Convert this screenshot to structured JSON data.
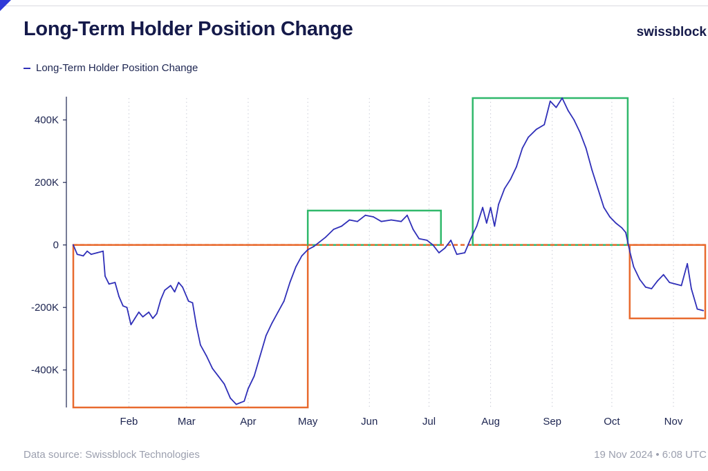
{
  "header": {
    "title": "Long-Term Holder Position Change",
    "brand": "swissblock"
  },
  "footer": {
    "source": "Data source: Swissblock Technologies",
    "timestamp": "19 Nov 2024 • 6:08 UTC"
  },
  "chart_data": {
    "type": "line",
    "title": "Long-Term Holder Position Change",
    "legend": {
      "placement": "top-left",
      "entries": [
        "Long-Term Holder Position Change"
      ]
    },
    "xlabel": "",
    "ylabel": "",
    "ylim": [
      -520000,
      470000
    ],
    "xlim": [
      "2024-01-04",
      "2024-11-17"
    ],
    "grid": {
      "x": true,
      "y": false
    },
    "x_ticks": [
      {
        "date": "2024-02-01",
        "label": "Feb"
      },
      {
        "date": "2024-03-01",
        "label": "Mar"
      },
      {
        "date": "2024-04-01",
        "label": "Apr"
      },
      {
        "date": "2024-05-01",
        "label": "May"
      },
      {
        "date": "2024-06-01",
        "label": "Jun"
      },
      {
        "date": "2024-07-01",
        "label": "Jul"
      },
      {
        "date": "2024-08-01",
        "label": "Aug"
      },
      {
        "date": "2024-09-01",
        "label": "Sep"
      },
      {
        "date": "2024-10-01",
        "label": "Oct"
      },
      {
        "date": "2024-11-01",
        "label": "Nov"
      }
    ],
    "y_ticks": [
      {
        "value": 400000,
        "label": "400K"
      },
      {
        "value": 200000,
        "label": "200K"
      },
      {
        "value": 0,
        "label": "0"
      },
      {
        "value": -200000,
        "label": "-200K"
      },
      {
        "value": -400000,
        "label": "-400K"
      }
    ],
    "series": [
      {
        "name": "Long-Term Holder Position Change",
        "color": "#2f2fb8",
        "points": [
          [
            "2024-01-04",
            0
          ],
          [
            "2024-01-06",
            -30000
          ],
          [
            "2024-01-09",
            -35000
          ],
          [
            "2024-01-11",
            -20000
          ],
          [
            "2024-01-13",
            -30000
          ],
          [
            "2024-01-16",
            -25000
          ],
          [
            "2024-01-19",
            -20000
          ],
          [
            "2024-01-20",
            -100000
          ],
          [
            "2024-01-22",
            -125000
          ],
          [
            "2024-01-25",
            -120000
          ],
          [
            "2024-01-27",
            -165000
          ],
          [
            "2024-01-29",
            -195000
          ],
          [
            "2024-01-31",
            -200000
          ],
          [
            "2024-02-02",
            -255000
          ],
          [
            "2024-02-04",
            -235000
          ],
          [
            "2024-02-06",
            -215000
          ],
          [
            "2024-02-08",
            -230000
          ],
          [
            "2024-02-11",
            -215000
          ],
          [
            "2024-02-13",
            -235000
          ],
          [
            "2024-02-15",
            -220000
          ],
          [
            "2024-02-17",
            -175000
          ],
          [
            "2024-02-19",
            -145000
          ],
          [
            "2024-02-22",
            -130000
          ],
          [
            "2024-02-24",
            -150000
          ],
          [
            "2024-02-26",
            -120000
          ],
          [
            "2024-02-28",
            -135000
          ],
          [
            "2024-03-02",
            -180000
          ],
          [
            "2024-03-04",
            -185000
          ],
          [
            "2024-03-06",
            -260000
          ],
          [
            "2024-03-08",
            -320000
          ],
          [
            "2024-03-11",
            -355000
          ],
          [
            "2024-03-14",
            -395000
          ],
          [
            "2024-03-17",
            -420000
          ],
          [
            "2024-03-20",
            -445000
          ],
          [
            "2024-03-23",
            -490000
          ],
          [
            "2024-03-26",
            -510000
          ],
          [
            "2024-03-28",
            -505000
          ],
          [
            "2024-03-30",
            -500000
          ],
          [
            "2024-04-01",
            -460000
          ],
          [
            "2024-04-04",
            -420000
          ],
          [
            "2024-04-07",
            -355000
          ],
          [
            "2024-04-10",
            -290000
          ],
          [
            "2024-04-13",
            -250000
          ],
          [
            "2024-04-16",
            -215000
          ],
          [
            "2024-04-19",
            -180000
          ],
          [
            "2024-04-22",
            -120000
          ],
          [
            "2024-04-25",
            -70000
          ],
          [
            "2024-04-28",
            -35000
          ],
          [
            "2024-05-01",
            -15000
          ],
          [
            "2024-05-04",
            -5000
          ],
          [
            "2024-05-07",
            10000
          ],
          [
            "2024-05-10",
            25000
          ],
          [
            "2024-05-14",
            50000
          ],
          [
            "2024-05-18",
            60000
          ],
          [
            "2024-05-22",
            80000
          ],
          [
            "2024-05-26",
            75000
          ],
          [
            "2024-05-30",
            95000
          ],
          [
            "2024-06-03",
            90000
          ],
          [
            "2024-06-07",
            75000
          ],
          [
            "2024-06-12",
            80000
          ],
          [
            "2024-06-17",
            75000
          ],
          [
            "2024-06-20",
            95000
          ],
          [
            "2024-06-23",
            50000
          ],
          [
            "2024-06-26",
            20000
          ],
          [
            "2024-06-30",
            15000
          ],
          [
            "2024-07-03",
            0
          ],
          [
            "2024-07-06",
            -25000
          ],
          [
            "2024-07-09",
            -10000
          ],
          [
            "2024-07-12",
            15000
          ],
          [
            "2024-07-15",
            -30000
          ],
          [
            "2024-07-19",
            -25000
          ],
          [
            "2024-07-22",
            20000
          ],
          [
            "2024-07-25",
            60000
          ],
          [
            "2024-07-28",
            120000
          ],
          [
            "2024-07-30",
            70000
          ],
          [
            "2024-08-01",
            120000
          ],
          [
            "2024-08-03",
            60000
          ],
          [
            "2024-08-05",
            130000
          ],
          [
            "2024-08-08",
            180000
          ],
          [
            "2024-08-11",
            210000
          ],
          [
            "2024-08-14",
            250000
          ],
          [
            "2024-08-17",
            310000
          ],
          [
            "2024-08-20",
            345000
          ],
          [
            "2024-08-24",
            370000
          ],
          [
            "2024-08-28",
            385000
          ],
          [
            "2024-08-31",
            460000
          ],
          [
            "2024-09-03",
            440000
          ],
          [
            "2024-09-06",
            470000
          ],
          [
            "2024-09-09",
            430000
          ],
          [
            "2024-09-12",
            400000
          ],
          [
            "2024-09-15",
            360000
          ],
          [
            "2024-09-18",
            310000
          ],
          [
            "2024-09-21",
            240000
          ],
          [
            "2024-09-24",
            180000
          ],
          [
            "2024-09-27",
            120000
          ],
          [
            "2024-09-30",
            90000
          ],
          [
            "2024-10-03",
            70000
          ],
          [
            "2024-10-06",
            55000
          ],
          [
            "2024-10-08",
            40000
          ],
          [
            "2024-10-10",
            -20000
          ],
          [
            "2024-10-12",
            -70000
          ],
          [
            "2024-10-15",
            -110000
          ],
          [
            "2024-10-18",
            -135000
          ],
          [
            "2024-10-21",
            -140000
          ],
          [
            "2024-10-24",
            -115000
          ],
          [
            "2024-10-27",
            -95000
          ],
          [
            "2024-10-30",
            -120000
          ],
          [
            "2024-11-02",
            -125000
          ],
          [
            "2024-11-05",
            -130000
          ],
          [
            "2024-11-08",
            -60000
          ],
          [
            "2024-11-10",
            -140000
          ],
          [
            "2024-11-13",
            -205000
          ],
          [
            "2024-11-16",
            -210000
          ]
        ]
      }
    ],
    "annotations": [
      {
        "shape": "rect",
        "color": "#e86a2e",
        "x0": "2024-01-04",
        "x1": "2024-05-01",
        "y0": -520000,
        "y1": 0
      },
      {
        "shape": "rect",
        "color": "#2fb86a",
        "x0": "2024-05-01",
        "x1": "2024-07-07",
        "y0": 0,
        "y1": 110000
      },
      {
        "shape": "rect",
        "color": "#2fb86a",
        "x0": "2024-07-23",
        "x1": "2024-10-09",
        "y0": 0,
        "y1": 470000
      },
      {
        "shape": "rect",
        "color": "#e86a2e",
        "x0": "2024-10-10",
        "x1": "2024-11-17",
        "y0": -235000,
        "y1": 0
      },
      {
        "shape": "hline",
        "color": "#e86a2e",
        "style": "dashed",
        "y": 0,
        "x0": "2024-01-04",
        "x1": "2024-11-17"
      }
    ]
  }
}
